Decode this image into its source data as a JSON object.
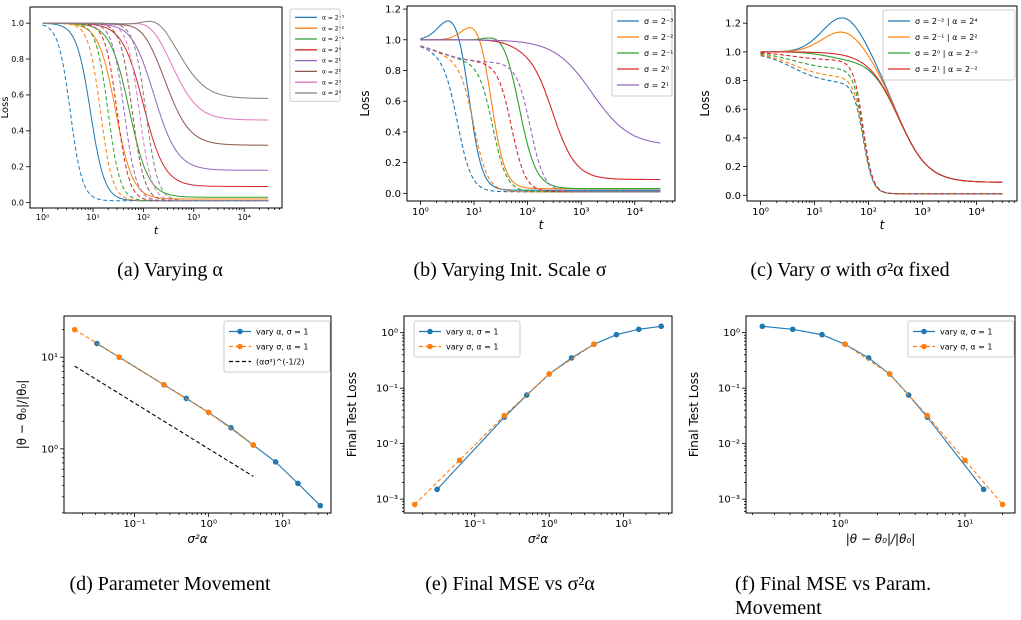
{
  "captions": [
    "(a) Varying α",
    "(b) Varying Init. Scale σ",
    "(c) Vary σ with σ²α fixed",
    "(d) Parameter Movement",
    "(e) Final MSE vs σ²α",
    "(f) Final MSE vs Param. Movement"
  ],
  "colors": {
    "blue": "#1f77b4",
    "orange": "#ff7f0e",
    "green": "#2ca02c",
    "red": "#d62728",
    "purple": "#9467bd",
    "brown": "#8c564b",
    "pink": "#e377c2",
    "gray": "#7f7f7f",
    "black": "#000000"
  },
  "chart_data": [
    {
      "type": "line",
      "xlabel": "t",
      "ylabel": "Loss",
      "xscale": "log",
      "xlim": [
        1,
        30000
      ],
      "ylim": [
        0,
        1.05
      ],
      "xticks": [
        "10⁰",
        "10¹",
        "10²",
        "10³",
        "10⁴"
      ],
      "yticks": [
        "0.0",
        "0.2",
        "0.4",
        "0.6",
        "0.8",
        "1.0"
      ],
      "legend": "outside-right",
      "series": [
        {
          "name": "α = 2⁻⁵",
          "final_solid": 0.01,
          "final_dashed": 0.01
        },
        {
          "name": "α = 2⁻²",
          "final_solid": 0.02,
          "final_dashed": 0.01
        },
        {
          "name": "α = 2⁻¹",
          "final_solid": 0.03,
          "final_dashed": 0.01
        },
        {
          "name": "α = 2⁰",
          "final_solid": 0.09,
          "final_dashed": 0.01
        },
        {
          "name": "α = 2¹",
          "final_solid": 0.18,
          "final_dashed": 0.01
        },
        {
          "name": "α = 2²",
          "final_solid": 0.32,
          "final_dashed": 0.01
        },
        {
          "name": "α = 2³",
          "final_solid": 0.46,
          "final_dashed": 0.01
        },
        {
          "name": "α = 2⁴",
          "final_solid": 0.58,
          "final_dashed": 0.01
        }
      ]
    },
    {
      "type": "line",
      "xlabel": "t",
      "ylabel": "Loss",
      "xscale": "log",
      "xlim": [
        1,
        30000
      ],
      "ylim": [
        -0.05,
        1.22
      ],
      "xticks": [
        "10⁰",
        "10¹",
        "10²",
        "10³",
        "10⁴"
      ],
      "yticks": [
        "0.0",
        "0.2",
        "0.4",
        "0.6",
        "0.8",
        "1.0",
        "1.2"
      ],
      "legend": "top-right",
      "series": [
        {
          "name": "σ = 2⁻³",
          "peak": 1.17,
          "final_solid": 0.02
        },
        {
          "name": "σ = 2⁻²",
          "peak": 1.15,
          "final_solid": 0.03
        },
        {
          "name": "σ = 2⁻¹",
          "peak": 1.07,
          "final_solid": 0.03
        },
        {
          "name": "σ = 2⁰",
          "peak": 0.98,
          "final_solid": 0.09
        },
        {
          "name": "σ = 2¹",
          "peak": 1.0,
          "final_solid": 0.31
        }
      ]
    },
    {
      "type": "line",
      "xlabel": "t",
      "ylabel": "Loss",
      "xscale": "log",
      "xlim": [
        1,
        30000
      ],
      "ylim": [
        -0.04,
        1.32
      ],
      "xticks": [
        "10⁰",
        "10¹",
        "10²",
        "10³",
        "10⁴"
      ],
      "yticks": [
        "0.0",
        "0.2",
        "0.4",
        "0.6",
        "0.8",
        "1.0",
        "1.2"
      ],
      "legend": "top-right",
      "series": [
        {
          "name": "σ = 2⁻² | α = 2⁴",
          "peak": 1.26,
          "final_solid": 0.09
        },
        {
          "name": "σ = 2⁻¹ | α = 2²",
          "peak": 1.16,
          "final_solid": 0.09
        },
        {
          "name": "σ = 2⁰ | α = 2⁻⁰",
          "peak": 0.97,
          "final_solid": 0.09
        },
        {
          "name": "σ = 2¹ | α = 2⁻²",
          "peak": 1.0,
          "final_solid": 0.09
        }
      ]
    },
    {
      "type": "line",
      "xlabel": "σ²α",
      "ylabel": "|θ − θ₀|/|θ₀|",
      "xscale": "log",
      "yscale": "log",
      "xticks": [
        "10⁻¹",
        "10⁰",
        "10¹"
      ],
      "yticks": [
        "10⁰",
        "10¹"
      ],
      "legend": "top-right",
      "series": [
        {
          "name": "vary α, σ = 1",
          "x": [
            0.03125,
            0.0625,
            0.25,
            0.5,
            1,
            2,
            4,
            8,
            16,
            32
          ],
          "y": [
            14.1,
            10.0,
            5.0,
            3.55,
            2.5,
            1.7,
            1.1,
            0.72,
            0.42,
            0.24
          ]
        },
        {
          "name": "vary σ, α = 1",
          "x": [
            0.015625,
            0.0625,
            0.25,
            1,
            4
          ],
          "y": [
            20.0,
            10.0,
            5.0,
            2.5,
            1.1
          ]
        },
        {
          "name": "(ασ²)^(-1/2)",
          "x": [
            0.015625,
            4
          ],
          "y": [
            8.0,
            0.5
          ]
        }
      ]
    },
    {
      "type": "line",
      "xlabel": "σ²α",
      "ylabel": "Final Test Loss",
      "xscale": "log",
      "yscale": "log",
      "xticks": [
        "10⁻¹",
        "10⁰",
        "10¹"
      ],
      "yticks": [
        "10⁻³",
        "10⁻²",
        "10⁻¹",
        "10⁰"
      ],
      "legend": "top-left",
      "series": [
        {
          "name": "vary α, σ = 1",
          "x": [
            0.03125,
            0.25,
            0.5,
            1,
            2,
            4,
            8,
            16,
            32
          ],
          "y": [
            0.0015,
            0.03,
            0.075,
            0.18,
            0.35,
            0.62,
            0.92,
            1.15,
            1.3
          ]
        },
        {
          "name": "vary σ, α = 1",
          "x": [
            0.015625,
            0.0625,
            0.25,
            1,
            4
          ],
          "y": [
            0.0008,
            0.005,
            0.032,
            0.18,
            0.62
          ]
        }
      ]
    },
    {
      "type": "line",
      "xlabel": "|θ − θ₀|/|θ₀|",
      "ylabel": "Final Test Loss",
      "xscale": "log",
      "yscale": "log",
      "xticks": [
        "10⁰",
        "10¹"
      ],
      "yticks": [
        "10⁻³",
        "10⁻²",
        "10⁻¹",
        "10⁰"
      ],
      "legend": "top-right",
      "series": [
        {
          "name": "vary α, σ = 1",
          "x": [
            0.24,
            0.42,
            0.72,
            1.1,
            1.7,
            2.5,
            3.55,
            5.0,
            14.1
          ],
          "y": [
            1.3,
            1.15,
            0.92,
            0.62,
            0.35,
            0.18,
            0.075,
            0.03,
            0.0015
          ]
        },
        {
          "name": "vary σ, α = 1",
          "x": [
            1.1,
            2.5,
            5.0,
            10.0,
            20.0
          ],
          "y": [
            0.62,
            0.18,
            0.032,
            0.005,
            0.0008
          ]
        }
      ]
    }
  ]
}
